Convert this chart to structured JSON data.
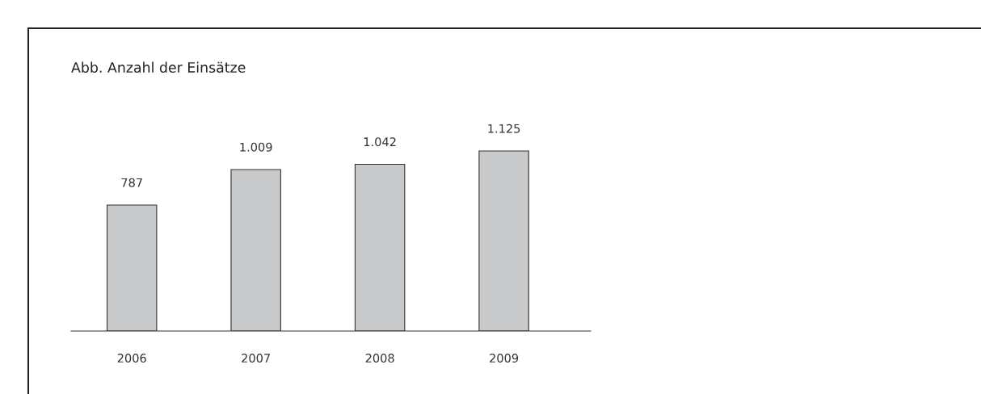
{
  "chart_data": {
    "type": "bar",
    "title": "Abb. Anzahl der Einsätze",
    "categories": [
      "2006",
      "2007",
      "2008",
      "2009"
    ],
    "values": [
      787,
      1009,
      1042,
      1125
    ],
    "value_labels": [
      "787",
      "1.009",
      "1.042",
      "1.125"
    ],
    "color": "#c8c9cb",
    "grid": false,
    "tick_labels": "x"
  }
}
